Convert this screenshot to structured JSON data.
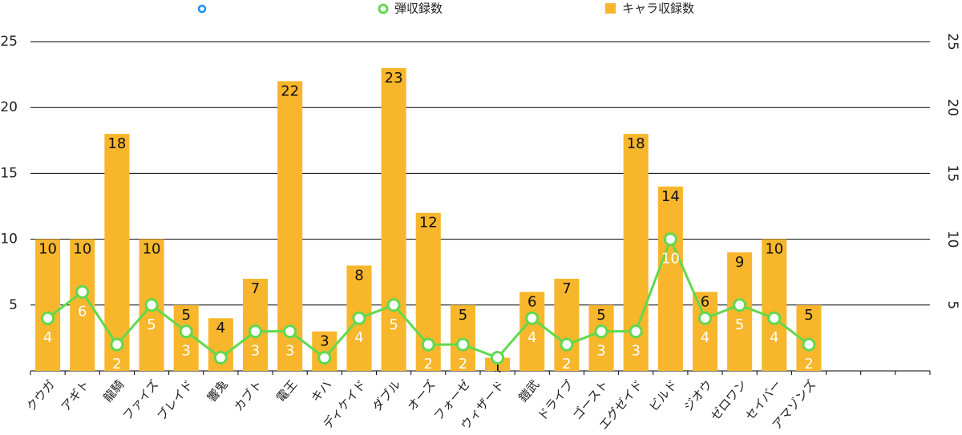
{
  "chart_data": {
    "type": "bar+line",
    "categories": [
      "クウガ",
      "アギト",
      "龍騎",
      "ファイズ",
      "ブレイド",
      "響鬼",
      "カブト",
      "電王",
      "キバ",
      "ディケイド",
      "ダブル",
      "オーズ",
      "フォーゼ",
      "ウィザード",
      "鎧武",
      "ドライブ",
      "ゴースト",
      "エグゼイド",
      "ビルド",
      "ジオウ",
      "ゼロワン",
      "セイバー",
      "アマゾンズ",
      null,
      null,
      null
    ],
    "series": [
      {
        "name": "弾収録数",
        "type": "line",
        "color": "#62d84e",
        "axis": "y2",
        "values": [
          4,
          6,
          2,
          5,
          3,
          1,
          3,
          3,
          1,
          4,
          5,
          2,
          2,
          1,
          4,
          2,
          3,
          3,
          10,
          4,
          5,
          4,
          2,
          null,
          null,
          null
        ]
      },
      {
        "name": "キャラ収録数",
        "type": "bar",
        "color": "#f7b62c",
        "values": [
          10,
          10,
          18,
          10,
          5,
          4,
          7,
          22,
          3,
          8,
          23,
          12,
          5,
          1,
          6,
          7,
          5,
          18,
          14,
          6,
          9,
          10,
          5,
          null,
          null,
          null
        ]
      }
    ],
    "ylim": [
      0,
      25
    ],
    "yticks": [
      5,
      10,
      15,
      20,
      25
    ],
    "y2lim": [
      0,
      25
    ],
    "y2ticks": [
      5,
      10,
      15,
      20,
      25
    ],
    "grid": true,
    "legend": "top"
  }
}
